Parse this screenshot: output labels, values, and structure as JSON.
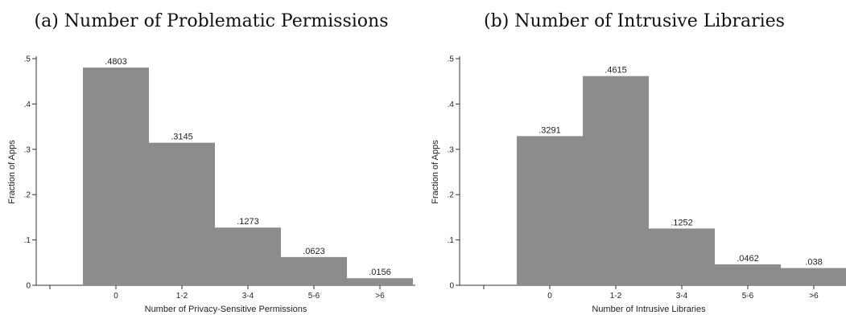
{
  "panels": [
    {
      "title": "(a) Number of Problematic Permissions",
      "chart_data": {
        "type": "bar",
        "categories": [
          "0",
          "1-2",
          "3-4",
          "5-6",
          ">6"
        ],
        "values": [
          0.4803,
          0.3145,
          0.1273,
          0.0623,
          0.0156
        ],
        "data_labels": [
          ".4803",
          ".3145",
          ".1273",
          ".0623",
          ".0156"
        ],
        "xlabel": "Number of Privacy-Sensitive Permissions",
        "ylabel": "Fraction of Apps",
        "ylim": [
          0,
          0.5
        ],
        "yticks": [
          0,
          0.1,
          0.2,
          0.3,
          0.4,
          0.5
        ],
        "ytick_labels": [
          "0",
          ".1",
          ".2",
          ".3",
          ".4",
          ".5"
        ],
        "bar_color": "#8c8c8c",
        "grid": false
      }
    },
    {
      "title": "(b) Number of Intrusive Libraries",
      "chart_data": {
        "type": "bar",
        "categories": [
          "0",
          "1-2",
          "3-4",
          "5-6",
          ">6"
        ],
        "values": [
          0.3291,
          0.4615,
          0.1252,
          0.0462,
          0.038
        ],
        "data_labels": [
          ".3291",
          ".4615",
          ".1252",
          ".0462",
          ".038"
        ],
        "xlabel": "Number of Intrusive Libraries",
        "ylabel": "Fraction of Apps",
        "ylim": [
          0,
          0.5
        ],
        "yticks": [
          0,
          0.1,
          0.2,
          0.3,
          0.4,
          0.5
        ],
        "ytick_labels": [
          "0",
          ".1",
          ".2",
          ".3",
          ".4",
          ".5"
        ],
        "bar_color": "#8c8c8c",
        "grid": false
      }
    }
  ]
}
